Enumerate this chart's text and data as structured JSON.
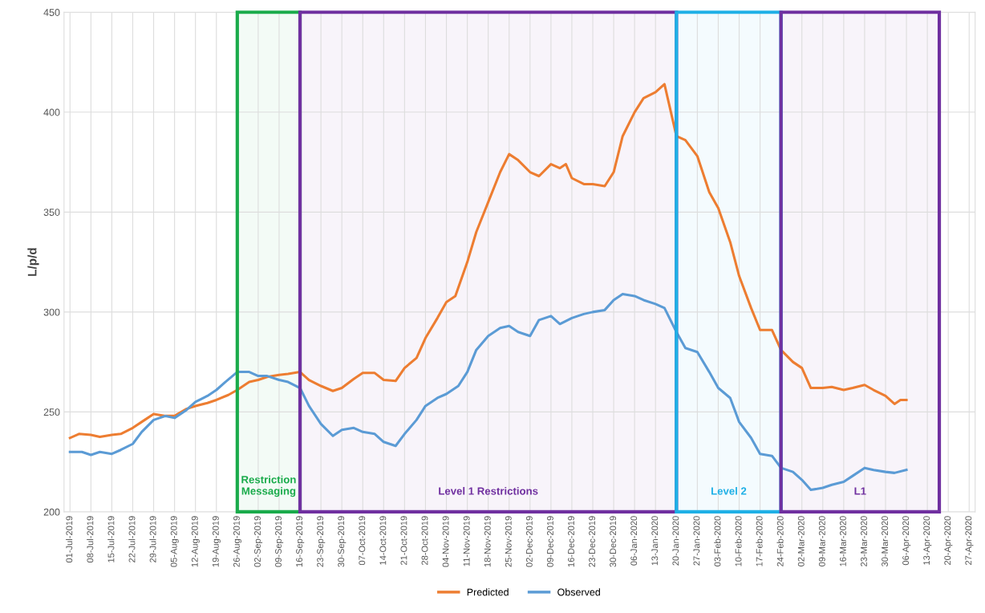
{
  "chart_data": {
    "type": "line",
    "ylabel": "L/p/d",
    "ylim": [
      200,
      450
    ],
    "yticks": [
      200,
      250,
      300,
      350,
      400,
      450
    ],
    "xlim": [
      "2019-06-29",
      "2020-04-29"
    ],
    "xticks": [
      {
        "value": "2019-07-01",
        "label": "01-Jul-2019"
      },
      {
        "value": "2019-07-08",
        "label": "08-Jul-2019"
      },
      {
        "value": "2019-07-15",
        "label": "15-Jul-2019"
      },
      {
        "value": "2019-07-22",
        "label": "22-Jul-2019"
      },
      {
        "value": "2019-07-29",
        "label": "29-Jul-2019"
      },
      {
        "value": "2019-08-05",
        "label": "05-Aug-2019"
      },
      {
        "value": "2019-08-12",
        "label": "12-Aug-2019"
      },
      {
        "value": "2019-08-19",
        "label": "19-Aug-2019"
      },
      {
        "value": "2019-08-26",
        "label": "26-Aug-2019"
      },
      {
        "value": "2019-09-02",
        "label": "02-Sep-2019"
      },
      {
        "value": "2019-09-09",
        "label": "09-Sep-2019"
      },
      {
        "value": "2019-09-16",
        "label": "16-Sep-2019"
      },
      {
        "value": "2019-09-23",
        "label": "23-Sep-2019"
      },
      {
        "value": "2019-09-30",
        "label": "30-Sep-2019"
      },
      {
        "value": "2019-10-07",
        "label": "07-Oct-2019"
      },
      {
        "value": "2019-10-14",
        "label": "14-Oct-2019"
      },
      {
        "value": "2019-10-21",
        "label": "21-Oct-2019"
      },
      {
        "value": "2019-10-28",
        "label": "28-Oct-2019"
      },
      {
        "value": "2019-11-04",
        "label": "04-Nov-2019"
      },
      {
        "value": "2019-11-11",
        "label": "11-Nov-2019"
      },
      {
        "value": "2019-11-18",
        "label": "18-Nov-2019"
      },
      {
        "value": "2019-11-25",
        "label": "25-Nov-2019"
      },
      {
        "value": "2019-12-02",
        "label": "02-Dec-2019"
      },
      {
        "value": "2019-12-09",
        "label": "09-Dec-2019"
      },
      {
        "value": "2019-12-16",
        "label": "16-Dec-2019"
      },
      {
        "value": "2019-12-23",
        "label": "23-Dec-2019"
      },
      {
        "value": "2019-12-30",
        "label": "30-Dec-2019"
      },
      {
        "value": "2020-01-06",
        "label": "06-Jan-2020"
      },
      {
        "value": "2020-01-13",
        "label": "13-Jan-2020"
      },
      {
        "value": "2020-01-20",
        "label": "20-Jan-2020"
      },
      {
        "value": "2020-01-27",
        "label": "27-Jan-2020"
      },
      {
        "value": "2020-02-03",
        "label": "03-Feb-2020"
      },
      {
        "value": "2020-02-10",
        "label": "10-Feb-2020"
      },
      {
        "value": "2020-02-17",
        "label": "17-Feb-2020"
      },
      {
        "value": "2020-02-24",
        "label": "24-Feb-2020"
      },
      {
        "value": "2020-03-02",
        "label": "02-Mar-2020"
      },
      {
        "value": "2020-03-09",
        "label": "09-Mar-2020"
      },
      {
        "value": "2020-03-16",
        "label": "16-Mar-2020"
      },
      {
        "value": "2020-03-23",
        "label": "23-Mar-2020"
      },
      {
        "value": "2020-03-30",
        "label": "30-Mar-2020"
      },
      {
        "value": "2020-04-06",
        "label": "06-Apr-2020"
      },
      {
        "value": "2020-04-13",
        "label": "13-Apr-2020"
      },
      {
        "value": "2020-04-20",
        "label": "20-Apr-2020"
      },
      {
        "value": "2020-04-27",
        "label": "27-Apr-2020"
      }
    ],
    "grid": true,
    "legend": "bottom",
    "marker": "none",
    "line_style": "solid",
    "series": [
      {
        "name": "Predicted",
        "color": "#ed7d31",
        "x": [
          "2019-07-01",
          "2019-07-04",
          "2019-07-08",
          "2019-07-11",
          "2019-07-15",
          "2019-07-18",
          "2019-07-22",
          "2019-07-26",
          "2019-07-29",
          "2019-08-02",
          "2019-08-05",
          "2019-08-09",
          "2019-08-12",
          "2019-08-16",
          "2019-08-19",
          "2019-08-23",
          "2019-08-26",
          "2019-08-30",
          "2019-09-02",
          "2019-09-05",
          "2019-09-09",
          "2019-09-12",
          "2019-09-16",
          "2019-09-19",
          "2019-09-23",
          "2019-09-27",
          "2019-09-30",
          "2019-10-04",
          "2019-10-07",
          "2019-10-11",
          "2019-10-14",
          "2019-10-18",
          "2019-10-21",
          "2019-10-25",
          "2019-10-28",
          "2019-11-01",
          "2019-11-04",
          "2019-11-07",
          "2019-11-11",
          "2019-11-14",
          "2019-11-18",
          "2019-11-22",
          "2019-11-25",
          "2019-11-28",
          "2019-12-02",
          "2019-12-05",
          "2019-12-09",
          "2019-12-12",
          "2019-12-14",
          "2019-12-16",
          "2019-12-20",
          "2019-12-23",
          "2019-12-27",
          "2019-12-30",
          "2020-01-02",
          "2020-01-06",
          "2020-01-09",
          "2020-01-13",
          "2020-01-16",
          "2020-01-20",
          "2020-01-23",
          "2020-01-27",
          "2020-01-31",
          "2020-02-03",
          "2020-02-07",
          "2020-02-10",
          "2020-02-14",
          "2020-02-17",
          "2020-02-21",
          "2020-02-24",
          "2020-02-28",
          "2020-03-02",
          "2020-03-05",
          "2020-03-09",
          "2020-03-12",
          "2020-03-16",
          "2020-03-19",
          "2020-03-23",
          "2020-03-26",
          "2020-03-30",
          "2020-04-02",
          "2020-04-04",
          "2020-04-06"
        ],
        "values": [
          237,
          239,
          238.5,
          237.5,
          238.5,
          239,
          242,
          246,
          249,
          248,
          248,
          251.5,
          253,
          254.5,
          256,
          258.5,
          261,
          265,
          266,
          267.5,
          268.5,
          269,
          270,
          266,
          263,
          260.5,
          262,
          266.5,
          269.5,
          269.5,
          266,
          265.5,
          272,
          277,
          287,
          297,
          305,
          308,
          325,
          340,
          355,
          370,
          379,
          376,
          370,
          368,
          374,
          372,
          374,
          367,
          364,
          364,
          363,
          370,
          388,
          400,
          407,
          410,
          414,
          388,
          386,
          378,
          360,
          352,
          335,
          318,
          302,
          291,
          291,
          281,
          275,
          272,
          262,
          262,
          262.5,
          261,
          262,
          263.5,
          261,
          258,
          254,
          256,
          256
        ]
      },
      {
        "name": "Observed",
        "color": "#5b9bd5",
        "x": [
          "2019-07-01",
          "2019-07-05",
          "2019-07-08",
          "2019-07-11",
          "2019-07-15",
          "2019-07-18",
          "2019-07-22",
          "2019-07-25",
          "2019-07-29",
          "2019-08-02",
          "2019-08-05",
          "2019-08-09",
          "2019-08-12",
          "2019-08-16",
          "2019-08-19",
          "2019-08-22",
          "2019-08-26",
          "2019-08-30",
          "2019-09-02",
          "2019-09-05",
          "2019-09-09",
          "2019-09-12",
          "2019-09-16",
          "2019-09-19",
          "2019-09-23",
          "2019-09-27",
          "2019-09-30",
          "2019-10-04",
          "2019-10-07",
          "2019-10-11",
          "2019-10-14",
          "2019-10-18",
          "2019-10-21",
          "2019-10-25",
          "2019-10-28",
          "2019-11-01",
          "2019-11-04",
          "2019-11-08",
          "2019-11-11",
          "2019-11-14",
          "2019-11-18",
          "2019-11-22",
          "2019-11-25",
          "2019-11-28",
          "2019-12-02",
          "2019-12-05",
          "2019-12-09",
          "2019-12-12",
          "2019-12-16",
          "2019-12-20",
          "2019-12-23",
          "2019-12-27",
          "2019-12-30",
          "2020-01-02",
          "2020-01-06",
          "2020-01-09",
          "2020-01-13",
          "2020-01-16",
          "2020-01-20",
          "2020-01-23",
          "2020-01-27",
          "2020-01-31",
          "2020-02-03",
          "2020-02-07",
          "2020-02-10",
          "2020-02-14",
          "2020-02-17",
          "2020-02-21",
          "2020-02-24",
          "2020-02-28",
          "2020-03-02",
          "2020-03-05",
          "2020-03-09",
          "2020-03-12",
          "2020-03-16",
          "2020-03-19",
          "2020-03-23",
          "2020-03-26",
          "2020-03-30",
          "2020-04-02",
          "2020-04-06"
        ],
        "values": [
          230,
          230,
          228.5,
          230,
          229,
          231,
          234,
          240,
          246,
          248,
          247,
          251,
          255,
          258,
          261,
          265,
          270,
          270,
          268,
          268,
          266,
          265,
          262,
          253,
          244,
          238,
          241,
          242,
          240,
          239,
          235,
          233,
          239,
          246,
          253,
          257,
          259,
          263,
          270,
          281,
          288,
          292,
          293,
          290,
          288,
          296,
          298,
          294,
          297,
          299,
          300,
          301,
          306,
          309,
          308,
          306,
          304,
          302,
          290,
          282,
          280,
          270,
          262,
          257,
          245,
          237,
          229,
          228,
          222,
          220,
          216,
          211,
          212,
          213.5,
          215,
          218,
          222,
          221,
          220,
          219.5,
          221
        ]
      }
    ],
    "bands": [
      {
        "axis": "x",
        "from": "2019-08-26",
        "to": "2019-09-16",
        "label": "Restriction\nMessaging",
        "color": "#1aab4b"
      },
      {
        "axis": "x",
        "from": "2019-09-16",
        "to": "2020-01-20",
        "label": "Level 1 Restrictions",
        "color": "#7030a0"
      },
      {
        "axis": "x",
        "from": "2020-01-20",
        "to": "2020-02-24",
        "label": "Level 2",
        "color": "#1fb0e6"
      },
      {
        "axis": "x",
        "from": "2020-02-24",
        "to": "2020-04-17",
        "label": "L1",
        "color": "#7030a0"
      }
    ]
  }
}
